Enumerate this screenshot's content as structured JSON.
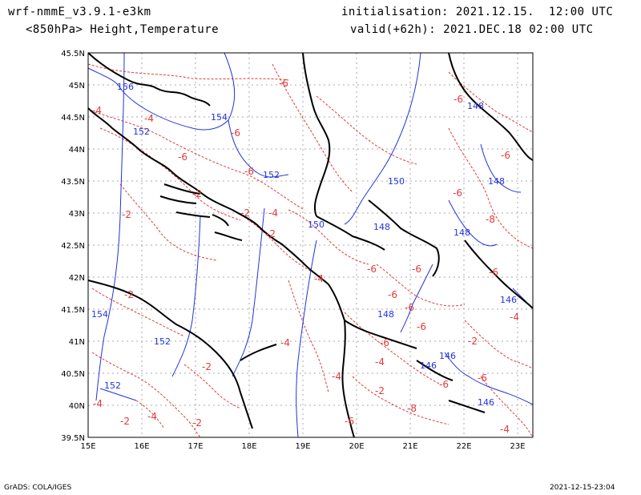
{
  "header": {
    "model": "wrf-nmmE_v3.9.1-e3km",
    "product": "<850hPa> Height,Temperature",
    "initialisation": "initialisation: 2021.12.15.  12:00 UTC",
    "valid": "valid(+62h): 2021.DEC.18 02:00 UTC"
  },
  "footer": {
    "software": "GrADS: COLA/IGES",
    "generated": "2021-12-15-23:04"
  },
  "colors": {
    "height_contour": "#2233dd",
    "temperature_contour": "#e23a3a",
    "coast_border": "#000000",
    "grid": "#aaaaaa"
  },
  "axes": {
    "lon_labels": [
      "15E",
      "16E",
      "17E",
      "18E",
      "19E",
      "20E",
      "21E",
      "22E",
      "23E"
    ],
    "lat_labels": [
      "45.5N",
      "45N",
      "44.5N",
      "44N",
      "43.5N",
      "43N",
      "42.5N",
      "42N",
      "41.5N",
      "41N",
      "40.5N",
      "40N",
      "39.5N"
    ]
  },
  "height_labels": [
    "156",
    "154",
    "152",
    "152",
    "150",
    "150",
    "148",
    "148",
    "148",
    "148",
    "146",
    "146",
    "146",
    "146",
    "148",
    "152",
    "154",
    "152"
  ],
  "temp_labels": [
    "-6",
    "-6",
    "-6",
    "-4",
    "-4",
    "-2",
    "-2",
    "-2",
    "-4",
    "-6",
    "-6",
    "-6",
    "-8",
    "-6",
    "-6",
    "-6",
    "-2",
    "-4",
    "-6",
    "-4",
    "-2",
    "-4",
    "-6",
    "-4",
    "-2",
    "-4",
    "-2",
    "-6",
    "-6",
    "-4",
    "-2",
    "-8",
    "-6",
    "-6",
    "-4",
    "-2",
    "-4",
    "-2",
    "-6",
    "-6"
  ]
}
